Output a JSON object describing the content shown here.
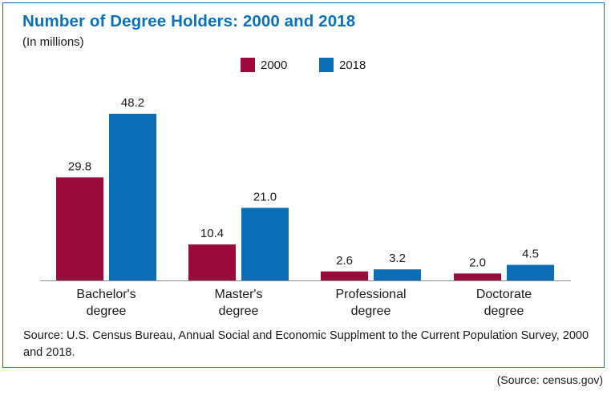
{
  "chart_data": {
    "type": "bar",
    "title": "Number of Degree Holders: 2000 and 2018",
    "subtitle": "(In millions)",
    "categories": [
      [
        "Bachelor's",
        "degree"
      ],
      [
        "Master's",
        "degree"
      ],
      [
        "Professional",
        "degree"
      ],
      [
        "Doctorate",
        "degree"
      ]
    ],
    "series": [
      {
        "name": "2000",
        "color": "#9b0a38",
        "values": [
          29.8,
          10.4,
          2.6,
          2.0
        ],
        "labels": [
          "29.8",
          "10.4",
          "2.6",
          "2.0"
        ]
      },
      {
        "name": "2018",
        "color": "#0a6db5",
        "values": [
          48.2,
          21.0,
          3.2,
          4.5
        ],
        "labels": [
          "48.2",
          "21.0",
          "3.2",
          "4.5"
        ]
      }
    ],
    "legend_position": "top-center",
    "grid": false
  },
  "source_text": "Source: U.S. Census Bureau, Annual Social and Economic Supplment to the Current Population Survey, 2000 and 2018.",
  "credit_text": "(Source: census.gov)"
}
